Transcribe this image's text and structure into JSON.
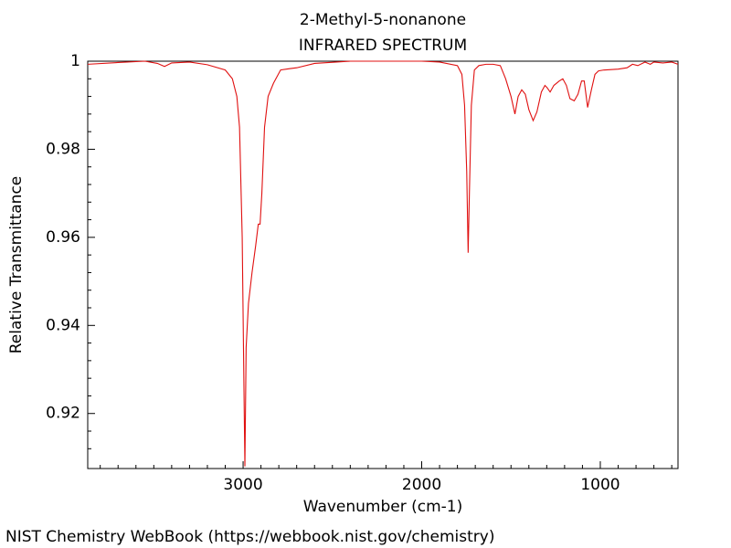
{
  "chart_data": {
    "type": "line",
    "title": "2-Methyl-5-nonanone",
    "subtitle": "INFRARED SPECTRUM",
    "xlabel": "Wavenumber (cm-1)",
    "ylabel": "Relative Transmittance",
    "footer": "NIST Chemistry WebBook (https://webbook.nist.gov/chemistry)",
    "xlim": [
      3870,
      565
    ],
    "ylim": [
      0.9075,
      1
    ],
    "xticks": [
      3000,
      2000,
      1000
    ],
    "yticks": [
      0.92,
      0.94,
      0.96,
      0.98,
      1
    ],
    "xminorticks": [
      3800,
      3700,
      3600,
      3500,
      3400,
      3300,
      3200,
      3100,
      2900,
      2800,
      2700,
      2600,
      2500,
      2400,
      2300,
      2200,
      2100,
      1900,
      1800,
      1700,
      1600,
      1500,
      1400,
      1300,
      1200,
      1100,
      900,
      800,
      700,
      600
    ],
    "yminorticks": [
      0.912,
      0.916,
      0.924,
      0.928,
      0.932,
      0.936,
      0.944,
      0.948,
      0.952,
      0.956,
      0.964,
      0.968,
      0.972,
      0.976,
      0.984,
      0.988,
      0.992,
      0.996
    ],
    "series": [
      {
        "name": "2-Methyl-5-nonanone",
        "color": "#e01010",
        "x": [
          3870,
          3700,
          3550,
          3480,
          3440,
          3400,
          3300,
          3200,
          3100,
          3060,
          3035,
          3020,
          3005,
          2995,
          2990,
          2983,
          2970,
          2950,
          2930,
          2915,
          2905,
          2895,
          2880,
          2860,
          2830,
          2790,
          2740,
          2700,
          2600,
          2400,
          2200,
          2000,
          1900,
          1800,
          1775,
          1760,
          1748,
          1740,
          1733,
          1722,
          1705,
          1680,
          1640,
          1600,
          1560,
          1530,
          1500,
          1478,
          1460,
          1440,
          1420,
          1400,
          1376,
          1355,
          1330,
          1310,
          1298,
          1281,
          1260,
          1230,
          1210,
          1190,
          1170,
          1146,
          1125,
          1105,
          1090,
          1071,
          1050,
          1030,
          1010,
          980,
          900,
          850,
          820,
          790,
          750,
          720,
          700,
          650,
          600,
          565
        ],
        "values": [
          0.9993,
          0.9997,
          1.0,
          0.9995,
          0.9988,
          0.9996,
          0.9998,
          0.9992,
          0.998,
          0.996,
          0.992,
          0.985,
          0.96,
          0.925,
          0.908,
          0.935,
          0.945,
          0.952,
          0.958,
          0.963,
          0.963,
          0.97,
          0.985,
          0.992,
          0.995,
          0.998,
          0.9983,
          0.9985,
          0.9995,
          1.0,
          1.0,
          1.0,
          0.9998,
          0.999,
          0.997,
          0.99,
          0.975,
          0.9565,
          0.97,
          0.99,
          0.998,
          0.999,
          0.9993,
          0.9993,
          0.999,
          0.996,
          0.992,
          0.988,
          0.992,
          0.9935,
          0.9925,
          0.989,
          0.9865,
          0.9885,
          0.993,
          0.9945,
          0.994,
          0.993,
          0.9945,
          0.9955,
          0.996,
          0.9945,
          0.9915,
          0.991,
          0.9925,
          0.9955,
          0.9955,
          0.9895,
          0.9935,
          0.997,
          0.9978,
          0.998,
          0.9982,
          0.9985,
          0.9993,
          0.999,
          0.9998,
          0.9993,
          0.9998,
          0.9996,
          0.9998,
          0.9993
        ]
      }
    ]
  }
}
